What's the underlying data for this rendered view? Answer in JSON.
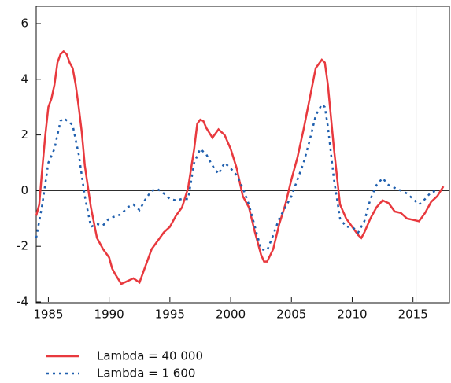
{
  "chart_data": {
    "type": "line",
    "xlim": [
      1984,
      2018
    ],
    "xticks": [
      1985,
      1990,
      1995,
      2000,
      2005,
      2010,
      2015
    ],
    "ylim": [
      -4,
      6
    ],
    "yticks": [
      -4,
      -2,
      0,
      2,
      4,
      6
    ],
    "zero_line": true,
    "vlines": [
      2015.25
    ],
    "series": [
      {
        "name": "Lambda = 40 000",
        "color": "#e8393e",
        "linestyle": "solid",
        "x": [
          1984,
          1984.25,
          1984.5,
          1984.75,
          1985,
          1985.25,
          1985.5,
          1985.75,
          1986,
          1986.25,
          1986.5,
          1986.75,
          1987,
          1987.25,
          1987.5,
          1987.75,
          1988,
          1988.5,
          1989,
          1989.5,
          1990,
          1990.25,
          1990.5,
          1991,
          1991.5,
          1992,
          1992.5,
          1993,
          1993.5,
          1994,
          1994.5,
          1995,
          1995.5,
          1996,
          1996.5,
          1997,
          1997.25,
          1997.5,
          1997.75,
          1998,
          1998.5,
          1999,
          1999.5,
          2000,
          2000.5,
          2001,
          2001.5,
          2002,
          2002.5,
          2002.75,
          2003,
          2003.5,
          2004,
          2004.5,
          2005,
          2005.5,
          2006,
          2006.5,
          2007,
          2007.5,
          2007.75,
          2008,
          2008.5,
          2009,
          2009.5,
          2010,
          2010.5,
          2010.75,
          2011,
          2011.5,
          2012,
          2012.5,
          2013,
          2013.5,
          2014,
          2014.5,
          2015,
          2015.5,
          2016,
          2016.5,
          2017,
          2017.5
        ],
        "values": [
          -0.9,
          -0.5,
          0.8,
          2.0,
          3.0,
          3.3,
          3.8,
          4.6,
          4.9,
          5.0,
          4.9,
          4.6,
          4.4,
          3.8,
          3.0,
          2.1,
          0.9,
          -0.6,
          -1.7,
          -2.1,
          -2.4,
          -2.8,
          -3.0,
          -3.35,
          -3.25,
          -3.15,
          -3.3,
          -2.7,
          -2.1,
          -1.8,
          -1.5,
          -1.3,
          -0.9,
          -0.6,
          0.1,
          1.5,
          2.4,
          2.55,
          2.5,
          2.25,
          1.9,
          2.2,
          2.0,
          1.5,
          0.8,
          -0.2,
          -0.6,
          -1.5,
          -2.3,
          -2.55,
          -2.55,
          -2.1,
          -1.2,
          -0.5,
          0.4,
          1.2,
          2.2,
          3.3,
          4.4,
          4.7,
          4.6,
          3.8,
          1.5,
          -0.5,
          -1.0,
          -1.3,
          -1.6,
          -1.7,
          -1.5,
          -1.0,
          -0.6,
          -0.35,
          -0.45,
          -0.75,
          -0.8,
          -1.0,
          -1.05,
          -1.1,
          -0.8,
          -0.4,
          -0.2,
          0.15
        ]
      },
      {
        "name": "Lambda = 1 600",
        "color": "#1f5fae",
        "linestyle": "dotted",
        "x": [
          1984,
          1984.5,
          1985,
          1985.5,
          1986,
          1986.25,
          1986.75,
          1987,
          1987.5,
          1988,
          1988.5,
          1989,
          1989.5,
          1990,
          1991,
          1991.5,
          1992,
          1992.5,
          1993,
          1993.5,
          1994,
          1994.5,
          1995,
          1995.5,
          1996,
          1996.5,
          1997,
          1997.5,
          1998,
          1998.5,
          1999,
          1999.5,
          2000,
          2000.5,
          2001,
          2001.5,
          2002,
          2002.5,
          2003,
          2003.5,
          2004,
          2004.5,
          2005,
          2005.5,
          2006,
          2006.5,
          2007,
          2007.5,
          2007.75,
          2008,
          2008.5,
          2009,
          2009.5,
          2010,
          2010.5,
          2011,
          2011.5,
          2012,
          2012.5,
          2013,
          2013.5,
          2014,
          2014.5,
          2015,
          2015.5,
          2016,
          2016.5,
          2017
        ],
        "values": [
          -1.7,
          -0.5,
          1.0,
          1.5,
          2.5,
          2.6,
          2.45,
          2.35,
          1.3,
          -0.2,
          -1.3,
          -1.2,
          -1.25,
          -1.0,
          -0.85,
          -0.6,
          -0.5,
          -0.7,
          -0.3,
          0.0,
          0.05,
          -0.1,
          -0.3,
          -0.35,
          -0.3,
          -0.3,
          1.0,
          1.5,
          1.3,
          0.9,
          0.6,
          1.0,
          0.8,
          0.55,
          0.1,
          -0.5,
          -1.3,
          -2.1,
          -2.15,
          -1.6,
          -1.0,
          -0.6,
          -0.2,
          0.4,
          1.0,
          1.8,
          2.7,
          3.1,
          3.0,
          2.3,
          0.4,
          -1.0,
          -1.3,
          -1.3,
          -1.5,
          -1.1,
          -0.3,
          0.2,
          0.45,
          0.2,
          0.1,
          0.0,
          -0.1,
          -0.3,
          -0.5,
          -0.3,
          -0.05,
          0.0
        ]
      }
    ]
  }
}
